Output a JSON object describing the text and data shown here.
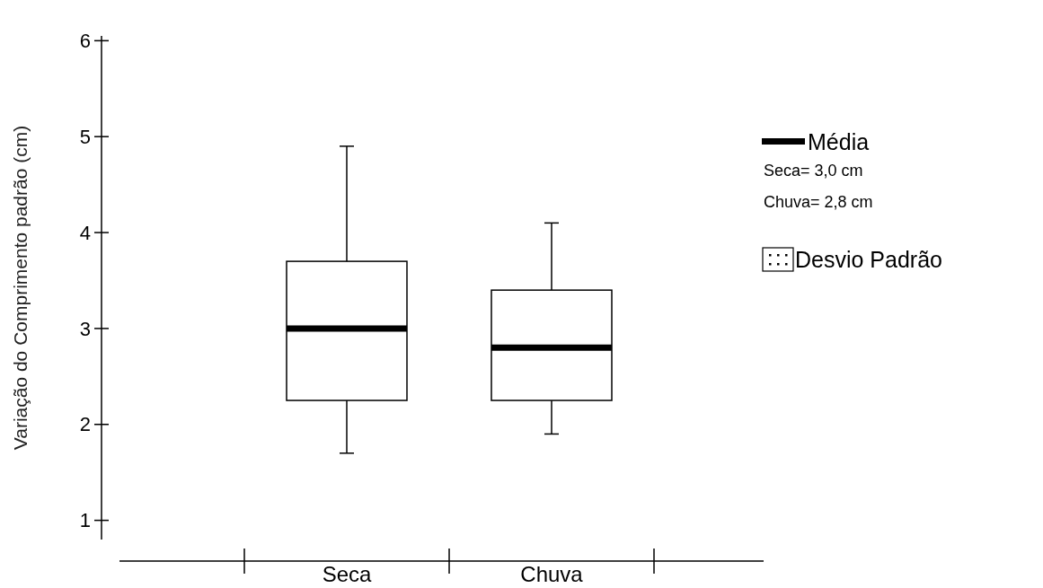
{
  "chart_data": {
    "type": "box",
    "ylabel": "Variação do Comprimento padrão (cm)",
    "categories": [
      "Seca",
      "Chuva"
    ],
    "boxes": [
      {
        "low": 1.7,
        "q1": 2.25,
        "median": 3.0,
        "q3": 3.7,
        "high": 4.9
      },
      {
        "low": 1.9,
        "q1": 2.25,
        "median": 2.8,
        "q3": 3.4,
        "high": 4.1
      }
    ],
    "ylim": [
      0.8,
      6.05
    ],
    "yticks": [
      1,
      2,
      3,
      4,
      5,
      6
    ],
    "grid": false,
    "annotations": [
      "Média",
      "Seca= 3,0 cm",
      "Chuva= 2,8 cm",
      "Desvio Padrão"
    ]
  }
}
